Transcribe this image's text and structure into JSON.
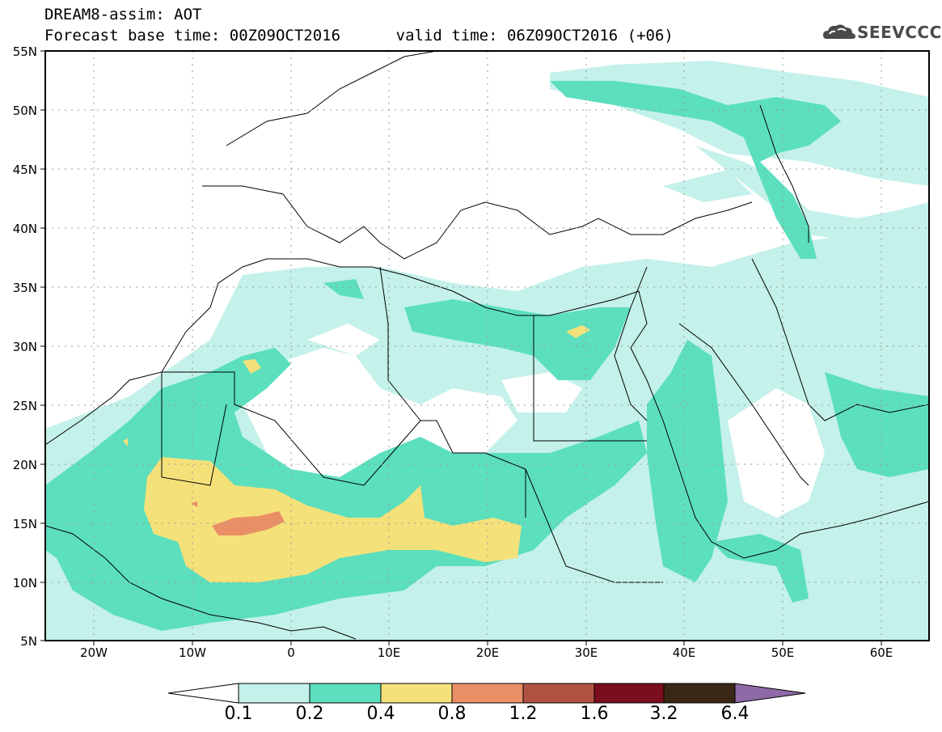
{
  "header": {
    "line1": "DREAM8-assim: AOT",
    "line2": "Forecast base time: 00Z09OCT2016      valid time: 06Z09OCT2016 (+06)"
  },
  "logo": {
    "text": "SEEVCCC",
    "icon": "cloud-icon"
  },
  "map": {
    "lat_labels": [
      "55N",
      "50N",
      "45N",
      "40N",
      "35N",
      "30N",
      "25N",
      "20N",
      "15N",
      "10N",
      "5N"
    ],
    "lon_labels": [
      "20W",
      "10W",
      "0",
      "10E",
      "20E",
      "30E",
      "40E",
      "50E",
      "60E"
    ],
    "grid": true
  },
  "colorbar": {
    "labels": [
      "0.1",
      "0.2",
      "0.4",
      "0.8",
      "1.2",
      "1.6",
      "3.2",
      "6.4"
    ],
    "colors": [
      "#ffffff",
      "#c4f1ea",
      "#5cdfbd",
      "#f5e17a",
      "#e98f66",
      "#b05342",
      "#7a0e1e",
      "#3a2716",
      "#8e6aa8"
    ]
  }
}
